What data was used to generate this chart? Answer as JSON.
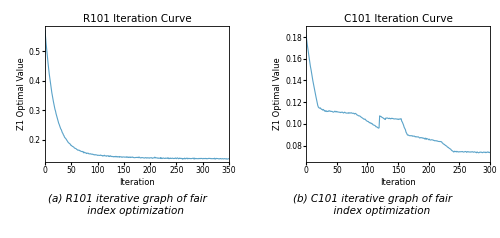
{
  "left_title": "R101 Iteration Curve",
  "right_title": "C101 Iteration Curve",
  "ylabel": "Z1 Optimal Value",
  "xlabel": "Iteration",
  "left_caption": "(a) R101 iterative graph of fair\n     index optimization",
  "right_caption": "(b) C101 iterative graph of fair\n      index optimization",
  "left_xlim": [
    0,
    350
  ],
  "left_ylim": [
    0.125,
    0.585
  ],
  "right_xlim": [
    0,
    300
  ],
  "right_ylim": [
    0.065,
    0.19
  ],
  "left_yticks": [
    0.2,
    0.3,
    0.4,
    0.5
  ],
  "right_yticks": [
    0.08,
    0.1,
    0.12,
    0.14,
    0.16,
    0.18
  ],
  "left_xticks": [
    0,
    50,
    100,
    150,
    200,
    250,
    300,
    350
  ],
  "right_xticks": [
    0,
    50,
    100,
    150,
    200,
    250,
    300
  ],
  "line_color": "#5ba3c9",
  "background": "#ffffff",
  "title_fontsize": 7.5,
  "axis_fontsize": 6,
  "tick_fontsize": 5.5,
  "caption_fontsize": 7.5
}
